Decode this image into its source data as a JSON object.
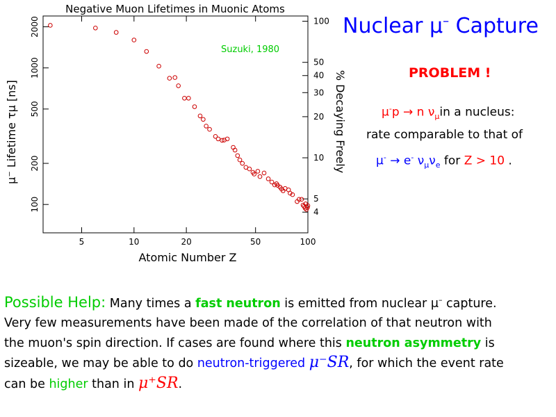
{
  "chart_data": {
    "type": "scatter",
    "title": "Negative Muon Lifetimes in Muonic Atoms",
    "xlabel": "Atomic Number  Z",
    "ylabel_left": "μ⁻ Lifetime  τμ [ns]",
    "ylabel_right": "% Decaying Freely",
    "annotation": "Suzuki, 1980",
    "x_scale": "log",
    "y_scale": "log",
    "xlim": [
      3,
      100
    ],
    "ylim": [
      62,
      2400
    ],
    "x_ticks": [
      5,
      10,
      20,
      50,
      100
    ],
    "y_ticks_left": [
      100,
      200,
      500,
      1000,
      2000
    ],
    "y_ticks_right": [
      100,
      50,
      40,
      30,
      20,
      10,
      5,
      4
    ],
    "colors": {
      "points": "#cc0000",
      "annotation": "#00cc00"
    },
    "points": [
      [
        3.3,
        2050
      ],
      [
        6,
        1960
      ],
      [
        7.9,
        1820
      ],
      [
        10,
        1600
      ],
      [
        11.8,
        1320
      ],
      [
        13.9,
        1030
      ],
      [
        16,
        840
      ],
      [
        17.2,
        850
      ],
      [
        18,
        740
      ],
      [
        19.5,
        600
      ],
      [
        20.6,
        600
      ],
      [
        22.3,
        520
      ],
      [
        24,
        445
      ],
      [
        25,
        420
      ],
      [
        26,
        375
      ],
      [
        27.2,
        355
      ],
      [
        29.4,
        315
      ],
      [
        30.5,
        302
      ],
      [
        32.1,
        295
      ],
      [
        33,
        296
      ],
      [
        34.4,
        302
      ],
      [
        37.2,
        262
      ],
      [
        38.1,
        250
      ],
      [
        39.4,
        228
      ],
      [
        40.6,
        212
      ],
      [
        42,
        200
      ],
      [
        44,
        187
      ],
      [
        46.1,
        182
      ],
      [
        48.3,
        172
      ],
      [
        49.1,
        167
      ],
      [
        51.5,
        175
      ],
      [
        53,
        160
      ],
      [
        56,
        170
      ],
      [
        59.2,
        154
      ],
      [
        62,
        146
      ],
      [
        64.4,
        139
      ],
      [
        66,
        142
      ],
      [
        67,
        138
      ],
      [
        69.1,
        134
      ],
      [
        70.5,
        130
      ],
      [
        72,
        126
      ],
      [
        74,
        131
      ],
      [
        77.4,
        128
      ],
      [
        79,
        121
      ],
      [
        81.6,
        118
      ],
      [
        86.7,
        105
      ],
      [
        89,
        109
      ],
      [
        92,
        109
      ],
      [
        93.8,
        99
      ],
      [
        96.4,
        94
      ],
      [
        98,
        92
      ],
      [
        99.4,
        95
      ],
      [
        100,
        98
      ],
      [
        97,
        101
      ],
      [
        95,
        97
      ]
    ]
  },
  "slide": {
    "title_main": "Nuclear μ",
    "title_sup": "–",
    "title_end": " Capture",
    "problem": "PROBLEM !",
    "eq1_mu": "μ",
    "eq1_sup": "-",
    "eq1_rest": "p → n ν",
    "eq1_sub": "μ",
    "eq1_tail": "in a nucleus:",
    "line2": "rate comparable to that of",
    "eq3_mu": "μ",
    "eq3_sup": "-",
    "eq3_arrow": " → e",
    "eq3_sup2": "-",
    "eq3_nu1": " ν",
    "eq3_sub1": "μ",
    "eq3_nu2": "ν",
    "eq3_sub2": "e",
    "eq3_for": "  for ",
    "eq3_cond": "Z > 10",
    "eq3_dot": " ."
  },
  "paragraph": {
    "help": "Possible Help:",
    "t1": "  Many times a ",
    "fast_neutron": "fast neutron",
    "t2": " is emitted from nuclear μ",
    "t2_sup": "–",
    "t3": " capture.",
    "line2": "Very few measurements have been made of the correlation of that neutron with",
    "line3a": "the muon's spin direction.   If cases are found where this ",
    "neutron_asym": "neutron asymmetry",
    "line3b": " is",
    "line4a": "sizeable, we may be able to do ",
    "neutron_triggered": "neutron-triggered",
    "musr_minus": "μ⁻SR",
    "line4b": ", for which the event rate",
    "line5a": "can be ",
    "higher": "higher",
    "line5b": " than in ",
    "musr_plus": "μ⁺SR",
    "line5c": "."
  }
}
